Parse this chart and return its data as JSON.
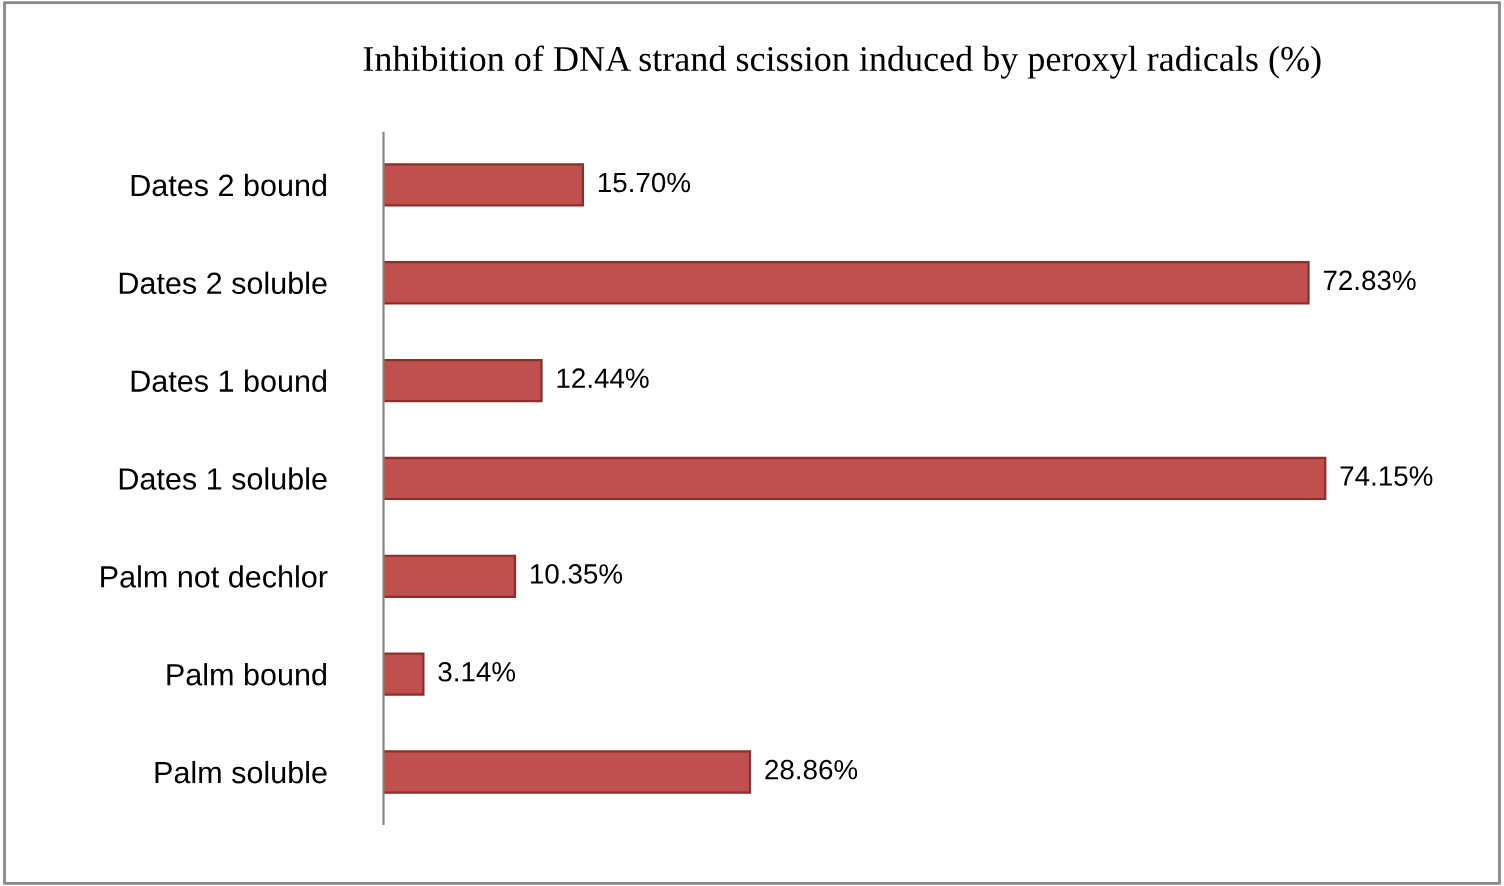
{
  "chart_data": {
    "type": "bar",
    "orientation": "horizontal",
    "title": "Inhibition of DNA strand scission induced by peroxyl radicals (%)",
    "categories": [
      "Dates 2 bound",
      "Dates 2 soluble",
      "Dates 1 bound",
      "Dates 1 soluble",
      "Palm not dechlor",
      "Palm bound",
      "Palm soluble"
    ],
    "values": [
      15.7,
      72.83,
      12.44,
      74.15,
      10.35,
      3.14,
      28.86
    ],
    "value_labels": [
      "15.70%",
      "72.83%",
      "12.44%",
      "74.15%",
      "10.35%",
      "3.14%",
      "28.86%"
    ],
    "color": "#c0504d",
    "legend": false,
    "grid": false
  }
}
